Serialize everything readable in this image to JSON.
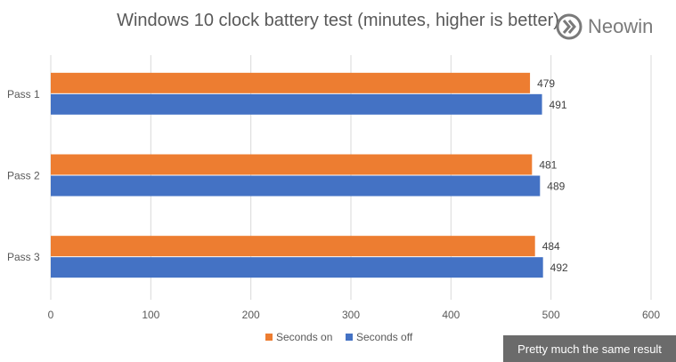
{
  "chart_data": {
    "type": "bar",
    "orientation": "horizontal",
    "title": "Windows 10 clock battery test (minutes, higher is better)",
    "categories": [
      "Pass 1",
      "Pass 2",
      "Pass 3"
    ],
    "series": [
      {
        "name": "Seconds on",
        "values": [
          479,
          481,
          484
        ],
        "color": "#ED7D31"
      },
      {
        "name": "Seconds off",
        "values": [
          491,
          489,
          492
        ],
        "color": "#4472C4"
      }
    ],
    "xlim": [
      0,
      600
    ],
    "xticks": [
      0,
      100,
      200,
      300,
      400,
      500,
      600
    ],
    "grid": true,
    "legend": "bottom"
  },
  "watermark": {
    "text": "Neowin",
    "icon": "neowin-logo-icon"
  },
  "caption": "Pretty much the same result"
}
